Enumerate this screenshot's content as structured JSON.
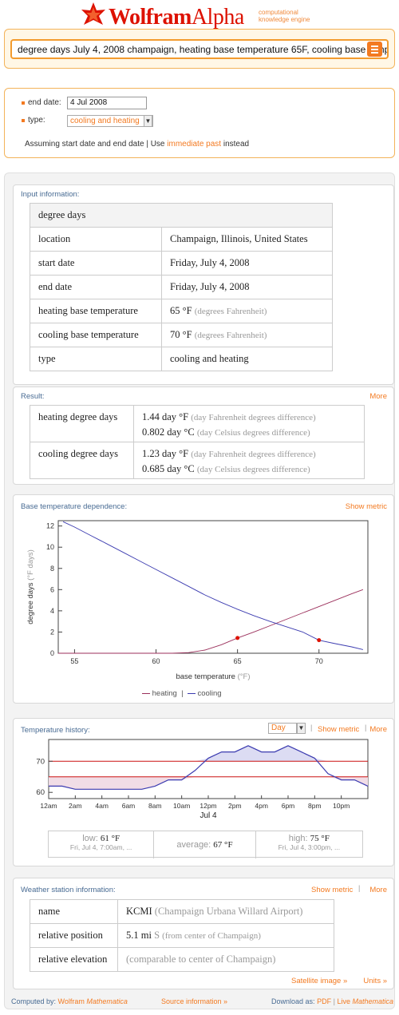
{
  "logo": {
    "wolfram": "Wolfram",
    "alpha": "Alpha",
    "tag1": "computational",
    "tag2": "knowledge engine"
  },
  "search": {
    "value": "degree days July 4, 2008 champaign, heating base temperature 65F, cooling base temp"
  },
  "assumptions": {
    "end_date_label": "end date:",
    "end_date_value": "4 Jul 2008",
    "type_label": "type:",
    "type_value": "cooling and heating",
    "assuming_text": "Assuming  start date and end date | Use",
    "immediate_past": "immediate past",
    "instead": "instead"
  },
  "input_info": {
    "title": "Input information:",
    "header": "degree days",
    "rows": [
      {
        "label": "location",
        "value": "Champaign, Illinois, United States",
        "unit": ""
      },
      {
        "label": "start date",
        "value": "Friday, July 4, 2008",
        "unit": ""
      },
      {
        "label": "end date",
        "value": "Friday, July 4, 2008",
        "unit": ""
      },
      {
        "label": "heating base temperature",
        "value": "65 °F",
        "unit": "(degrees Fahrenheit)"
      },
      {
        "label": "cooling base temperature",
        "value": "70 °F",
        "unit": "(degrees Fahrenheit)"
      },
      {
        "label": "type",
        "value": "cooling and heating",
        "unit": ""
      }
    ]
  },
  "result": {
    "title": "Result:",
    "more": "More",
    "rows": [
      {
        "label": "heating degree days",
        "v1": "1.44 day °F",
        "u1": "(day Fahrenheit degrees difference)",
        "v2": "0.802 day °C",
        "u2": "(day Celsius degrees difference)"
      },
      {
        "label": "cooling degree days",
        "v1": "1.23 day °F",
        "u1": "(day Fahrenheit degrees difference)",
        "v2": "0.685 day °C",
        "u2": "(day Celsius degrees difference)"
      }
    ]
  },
  "base_temp": {
    "title": "Base temperature dependence:",
    "show_metric": "Show metric",
    "ylabel": "degree days",
    "ylabel_unit": "(°F days)",
    "xlabel": "base temperature",
    "xlabel_unit": "(°F)",
    "legend_heating": "heating",
    "legend_sep": "|",
    "legend_cooling": "cooling"
  },
  "temp_history": {
    "title": "Temperature history:",
    "day_option": "Day",
    "show_metric": "Show metric",
    "more": "More",
    "date_label": "Jul 4",
    "low_label": "low:",
    "low_value": "61 °F",
    "low_time": "Fri, Jul 4, 7:00am, ...",
    "avg_label": "average:",
    "avg_value": "67 °F",
    "high_label": "high:",
    "high_value": "75 °F",
    "high_time": "Fri, Jul 4, 3:00pm, ..."
  },
  "weather_station": {
    "title": "Weather station information:",
    "show_metric": "Show metric",
    "more": "More",
    "rows": [
      {
        "label": "name",
        "value": "KCMI",
        "note": "(Champaign Urbana Willard Airport)"
      },
      {
        "label": "relative position",
        "value": "5.1 mi",
        "dir": "S",
        "note": "(from center of Champaign)"
      },
      {
        "label": "relative elevation",
        "value": "",
        "note": "(comparable to center of Champaign)"
      }
    ],
    "satellite": "Satellite image »",
    "units": "Units »"
  },
  "footer": {
    "computed_by": "Computed by:",
    "wolfram": "Wolfram",
    "mathematica": "Mathematica",
    "source": "Source information »",
    "download": "Download as:",
    "pdf": "PDF",
    "sep": "|",
    "live": "Live",
    "live_math": "Mathematica"
  },
  "colors": {
    "accent": "#f37a21",
    "logo": "#dd1100",
    "heating": "#9b2f5b",
    "cooling": "#3b3bb0",
    "pod_title": "#486b93"
  },
  "chart_data": [
    {
      "type": "line",
      "title": "",
      "xlabel": "base temperature (°F)",
      "ylabel": "degree days (°F days)",
      "xlim": [
        54,
        73
      ],
      "ylim": [
        0,
        12.5
      ],
      "xticks": [
        55,
        60,
        65,
        70
      ],
      "yticks": [
        0,
        2,
        4,
        6,
        8,
        10,
        12
      ],
      "series": [
        {
          "name": "heating",
          "color": "#9b2f5b",
          "x": [
            54,
            58,
            61,
            62,
            63,
            64,
            65,
            66,
            67,
            68,
            69,
            70,
            71,
            72,
            72.7
          ],
          "y": [
            0,
            0,
            0,
            0.06,
            0.3,
            0.8,
            1.44,
            2.0,
            2.6,
            3.2,
            3.8,
            4.4,
            5.0,
            5.6,
            6.0
          ]
        },
        {
          "name": "cooling",
          "color": "#3b3bb0",
          "x": [
            54.3,
            55,
            56,
            57,
            58,
            59,
            60,
            61,
            62,
            63,
            64,
            65,
            66,
            67,
            68,
            69,
            70,
            71,
            72,
            72.7
          ],
          "y": [
            12.4,
            11.9,
            11.1,
            10.3,
            9.5,
            8.7,
            7.9,
            7.1,
            6.3,
            5.5,
            4.8,
            4.15,
            3.55,
            3.0,
            2.5,
            2.0,
            1.23,
            0.9,
            0.6,
            0.35
          ]
        }
      ],
      "markers": [
        {
          "x": 65,
          "y": 1.44,
          "color": "#dd1100"
        },
        {
          "x": 70,
          "y": 1.23,
          "color": "#dd1100"
        }
      ]
    },
    {
      "type": "line",
      "title": "",
      "xlabel": "Jul 4",
      "ylabel": "",
      "ylim": [
        58,
        77
      ],
      "yticks": [
        60,
        70
      ],
      "xticks": [
        "12am",
        "2am",
        "4am",
        "6am",
        "8am",
        "10am",
        "12pm",
        "2pm",
        "4pm",
        "6pm",
        "8pm",
        "10pm"
      ],
      "base_lines": [
        65,
        70
      ],
      "series": [
        {
          "name": "temperature",
          "color": "#3b3bb0",
          "x": [
            0,
            1,
            2,
            3,
            4,
            5,
            6,
            7,
            8,
            9,
            10,
            11,
            12,
            13,
            14,
            15,
            16,
            17,
            18,
            19,
            20,
            21,
            22,
            23,
            24
          ],
          "y": [
            62,
            62,
            61,
            61,
            61,
            61,
            61,
            61,
            62,
            64,
            64,
            67,
            71,
            73,
            73,
            75,
            73,
            73,
            75,
            73,
            71,
            66,
            64,
            64,
            62
          ]
        }
      ]
    }
  ]
}
